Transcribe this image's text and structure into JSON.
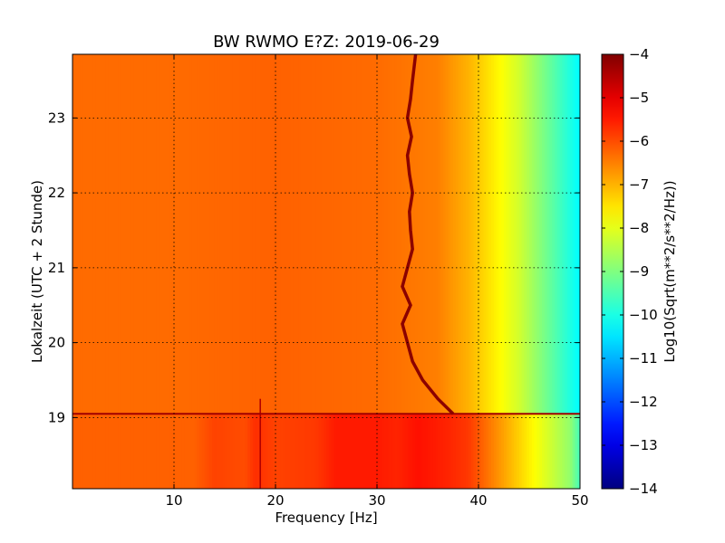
{
  "chart_data": {
    "type": "heatmap",
    "title": "BW RWMO E?Z: 2019-06-29",
    "xlabel": "Frequency [Hz]",
    "ylabel": "Lokalzeit (UTC + 2 Stunde)",
    "xlim": [
      0,
      50
    ],
    "ylim": [
      23.85,
      18.05
    ],
    "x_ticks": [
      10,
      20,
      30,
      40,
      50
    ],
    "x_tick_labels": [
      "10",
      "20",
      "30",
      "40",
      "50"
    ],
    "y_ticks": [
      19,
      20,
      21,
      22,
      23
    ],
    "y_tick_labels": [
      "19",
      "20",
      "21",
      "22",
      "23"
    ],
    "grid": true,
    "colorbar": {
      "label": "Log10(Sqrt(m**2/s**2/Hz))",
      "colormap": "jet",
      "range": [
        -14,
        -4
      ],
      "ticks": [
        -4,
        -5,
        -6,
        -7,
        -8,
        -9,
        -10,
        -11,
        -12,
        -13,
        -14
      ],
      "tick_labels": [
        "−4",
        "−5",
        "−6",
        "−7",
        "−8",
        "−9",
        "−10",
        "−11",
        "−12",
        "−13",
        "−14"
      ]
    },
    "spectral_profile_before_19h": {
      "freq_hz": [
        0,
        10,
        20,
        30,
        36,
        39,
        42,
        44,
        46,
        48,
        50
      ],
      "value": [
        -6.3,
        -6.3,
        -6.2,
        -6.3,
        -6.5,
        -7.0,
        -7.7,
        -8.2,
        -8.9,
        -9.6,
        -10.3
      ]
    },
    "spectral_profile_after_19h": {
      "freq_hz": [
        0,
        12,
        14,
        17,
        18,
        20,
        24,
        26,
        30,
        32,
        34,
        37,
        39,
        41,
        43,
        45,
        47,
        49,
        50
      ],
      "value": [
        -6.2,
        -6.2,
        -5.9,
        -6.0,
        -5.7,
        -5.9,
        -5.8,
        -5.5,
        -5.5,
        -5.6,
        -5.4,
        -5.6,
        -5.8,
        -6.4,
        -7.0,
        -7.6,
        -8.2,
        -8.8,
        -9.6
      ]
    },
    "annotations": [
      {
        "type": "narrow_line",
        "freq_hz": 18.5,
        "from_hour": 18.05,
        "to_hour": 19.25
      },
      {
        "type": "transition",
        "hour": 19.05
      },
      {
        "type": "wandering_tone",
        "hours": [
          19.05,
          19.25,
          19.5,
          19.75,
          20.0,
          20.25,
          20.5,
          20.75,
          21.0,
          21.25,
          21.5,
          21.75,
          22.0,
          22.25,
          22.5,
          22.75,
          23.0,
          23.25,
          23.5,
          23.85
        ],
        "freq_hz": [
          37.5,
          36.0,
          34.5,
          33.5,
          33.0,
          32.5,
          33.3,
          32.5,
          33.0,
          33.5,
          33.3,
          33.2,
          33.5,
          33.2,
          33.0,
          33.4,
          33.0,
          33.3,
          33.5,
          33.8
        ]
      }
    ]
  }
}
